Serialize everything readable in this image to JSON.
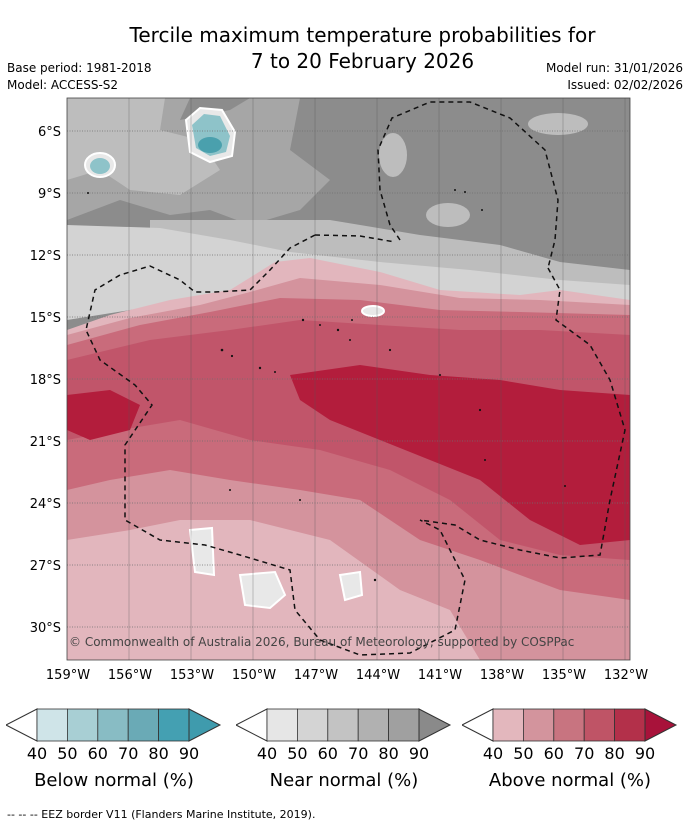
{
  "header": {
    "title_line1": "Tercile maximum temperature probabilities for",
    "title_line2": "7 to 20 February 2026",
    "base_period": "Base period: 1981-2018",
    "model": "Model: ACCESS-S2",
    "model_run": "Model run: 31/01/2026",
    "issued": "Issued: 02/02/2026"
  },
  "map": {
    "lat_labels": [
      "6°S",
      "9°S",
      "12°S",
      "15°S",
      "18°S",
      "21°S",
      "24°S",
      "27°S",
      "30°S"
    ],
    "lon_labels": [
      "159°W",
      "156°W",
      "153°W",
      "150°W",
      "147°W",
      "144°W",
      "141°W",
      "138°W",
      "135°W",
      "132°W"
    ],
    "copyright": "© Commonwealth of Australia 2026, Bureau of Meteorology, supported by COSPPac",
    "colors": {
      "near_40": "#e8e8e8",
      "near_50": "#d3d3d3",
      "near_60": "#bdbdbd",
      "near_70": "#a6a6a6",
      "near_80": "#8c8c8c",
      "above_40": "#e2b6bd",
      "above_50": "#d4939d",
      "above_60": "#c96b7b",
      "above_70": "#c1556a",
      "above_80": "#b31d3c",
      "below_50": "#8ec3c9",
      "below_70": "#4aa0ad"
    }
  },
  "legend": {
    "ticks": [
      "40",
      "50",
      "60",
      "70",
      "80",
      "90"
    ],
    "below": {
      "label": "Below normal (%)",
      "colors": [
        "#cfe4e8",
        "#a8cfd4",
        "#88bcc4",
        "#6aaab6",
        "#44a0b2"
      ]
    },
    "near": {
      "label": "Near normal (%)",
      "colors": [
        "#e6e6e6",
        "#d4d4d4",
        "#c3c3c3",
        "#b1b1b1",
        "#a0a0a0"
      ]
    },
    "above": {
      "label": "Above normal (%)",
      "colors": [
        "#e3b7bd",
        "#d3949d",
        "#c87480",
        "#bf5466",
        "#b3304a"
      ]
    }
  },
  "footnote": "--  --  -- EEZ border V11 (Flanders Marine Institute, 2019)."
}
